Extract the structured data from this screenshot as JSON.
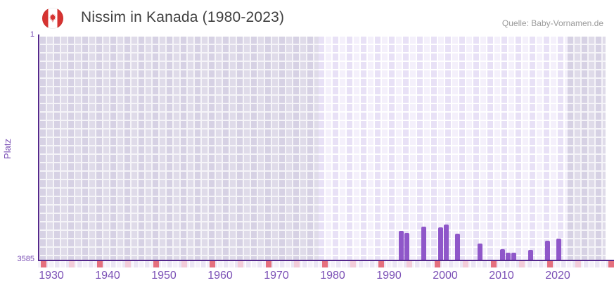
{
  "header": {
    "title": "Nissim in Kanada (1980-2023)",
    "source": "Quelle: Baby-Vornamen.de"
  },
  "chart_data": {
    "type": "bar",
    "title": "Nissim in Kanada (1980-2023)",
    "xlabel": "",
    "ylabel": "Platz",
    "y_axis": {
      "top_tick": "1",
      "bottom_tick": "3585",
      "min": 1,
      "max": 3585,
      "inverted": true
    },
    "x_ticks": [
      "1930",
      "1940",
      "1950",
      "1960",
      "1970",
      "1980",
      "1990",
      "2000",
      "2010",
      "2020"
    ],
    "x_range_years": [
      1928,
      2028.5
    ],
    "highlight_band_years": [
      1977.5,
      2021.75
    ],
    "grid": true,
    "legend": false,
    "bars": [
      {
        "year": 1992,
        "rank": 3110
      },
      {
        "year": 1993,
        "rank": 3140
      },
      {
        "year": 1996,
        "rank": 3040
      },
      {
        "year": 1999,
        "rank": 3050
      },
      {
        "year": 2000,
        "rank": 3015
      },
      {
        "year": 2002,
        "rank": 3160
      },
      {
        "year": 2006,
        "rank": 3310
      },
      {
        "year": 2010,
        "rank": 3410
      },
      {
        "year": 2011,
        "rank": 3465
      },
      {
        "year": 2012,
        "rank": 3465
      },
      {
        "year": 2015,
        "rank": 3415
      },
      {
        "year": 2018,
        "rank": 3265
      },
      {
        "year": 2020,
        "rank": 3240
      }
    ],
    "strip_marks": {
      "dark_years": [
        1928,
        1938,
        1948,
        1958,
        1968,
        1978,
        1988,
        1998,
        2008,
        2018,
        2029
      ],
      "light_years": [
        1933,
        1943,
        1953,
        1963,
        1973,
        1983,
        1993,
        2003,
        2013,
        2023
      ]
    },
    "colors": {
      "bar": "#8f57c9",
      "axis": "#55298c",
      "tick_label": "#7a4fb5",
      "title_text": "#3f3f3f",
      "source_text": "#9b9b9b",
      "mark_dark": "#e5707e",
      "mark_light": "#f3ccd9",
      "flag_red": "#d63331",
      "plot_gray": "#dfdbe9",
      "plot_highlight": "#f4f0fb"
    }
  }
}
